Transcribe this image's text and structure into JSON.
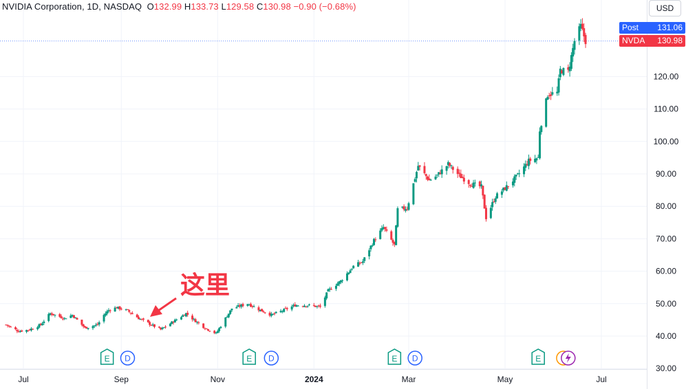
{
  "legend": {
    "symbol": "NVIDIA Corporation, 1D, NASDAQ",
    "o_label": "O",
    "o_value": "132.99",
    "h_label": "H",
    "h_value": "133.73",
    "l_label": "L",
    "l_value": "129.58",
    "c_label": "C",
    "c_value": "130.98",
    "change": "−0.90 (−0.68%)"
  },
  "currency": "USD",
  "tags": {
    "post_label": "Post",
    "post_value": "131.06",
    "nvda_label": "NVDA",
    "nvda_value": "130.98"
  },
  "annotation": "这里",
  "colors": {
    "up": "#089981",
    "down": "#f23645",
    "post": "#2962ff",
    "grid": "#f0f3fa"
  },
  "events": [
    {
      "type": "E",
      "time": "2023-08-23"
    },
    {
      "type": "D",
      "time": "2023-09-05"
    },
    {
      "type": "E",
      "time": "2023-11-21"
    },
    {
      "type": "D",
      "time": "2023-12-05"
    },
    {
      "type": "E",
      "time": "2024-02-21"
    },
    {
      "type": "D",
      "time": "2024-03-05"
    },
    {
      "type": "E",
      "time": "2024-05-22"
    },
    {
      "type": "S",
      "time": "2024-06-07"
    },
    {
      "type": "Z",
      "time": "2024-06-10"
    }
  ],
  "chart_data": {
    "type": "candlestick",
    "title": "NVIDIA Corporation, 1D, NASDAQ",
    "ylim": [
      30,
      136
    ],
    "y_ticks": [
      "120.00",
      "110.00",
      "100.00",
      "90.00",
      "80.00",
      "70.00",
      "60.00",
      "50.00",
      "40.00",
      "30.00"
    ],
    "x_ticks": [
      "Jul",
      "Sep",
      "Nov",
      "2024",
      "Mar",
      "May",
      "Jul"
    ],
    "anchors": [
      [
        "2023-06-20",
        43.5
      ],
      [
        "2023-06-28",
        41.5
      ],
      [
        "2023-07-05",
        42.0
      ],
      [
        "2023-07-12",
        43.5
      ],
      [
        "2023-07-18",
        47.0
      ],
      [
        "2023-07-27",
        45.5
      ],
      [
        "2023-08-01",
        46.5
      ],
      [
        "2023-08-09",
        42.5
      ],
      [
        "2023-08-17",
        43.5
      ],
      [
        "2023-08-21",
        46.5
      ],
      [
        "2023-08-24",
        48.0
      ],
      [
        "2023-08-29",
        48.8
      ],
      [
        "2023-09-05",
        47.8
      ],
      [
        "2023-09-12",
        45.5
      ],
      [
        "2023-09-20",
        43.5
      ],
      [
        "2023-09-26",
        42.0
      ],
      [
        "2023-10-04",
        44.5
      ],
      [
        "2023-10-12",
        47.0
      ],
      [
        "2023-10-17",
        45.0
      ],
      [
        "2023-10-24",
        42.5
      ],
      [
        "2023-10-31",
        40.8
      ],
      [
        "2023-11-06",
        45.5
      ],
      [
        "2023-11-10",
        48.5
      ],
      [
        "2023-11-20",
        50.0
      ],
      [
        "2023-11-28",
        48.0
      ],
      [
        "2023-12-05",
        46.5
      ],
      [
        "2023-12-13",
        48.0
      ],
      [
        "2023-12-20",
        49.5
      ],
      [
        "2023-12-28",
        49.5
      ],
      [
        "2024-01-05",
        49.0
      ],
      [
        "2024-01-10",
        54.0
      ],
      [
        "2024-01-18",
        57.0
      ],
      [
        "2024-01-26",
        61.5
      ],
      [
        "2024-02-01",
        63.0
      ],
      [
        "2024-02-08",
        69.5
      ],
      [
        "2024-02-14",
        73.5
      ],
      [
        "2024-02-21",
        68.0
      ],
      [
        "2024-02-23",
        79.0
      ],
      [
        "2024-02-29",
        79.5
      ],
      [
        "2024-03-07",
        92.5
      ],
      [
        "2024-03-14",
        88.0
      ],
      [
        "2024-03-19",
        89.5
      ],
      [
        "2024-03-26",
        93.0
      ],
      [
        "2024-04-02",
        89.5
      ],
      [
        "2024-04-09",
        87.0
      ],
      [
        "2024-04-16",
        86.0
      ],
      [
        "2024-04-19",
        76.5
      ],
      [
        "2024-04-25",
        83.0
      ],
      [
        "2024-05-02",
        86.0
      ],
      [
        "2024-05-09",
        89.5
      ],
      [
        "2024-05-16",
        94.0
      ],
      [
        "2024-05-22",
        95.0
      ],
      [
        "2024-05-23",
        103.5
      ],
      [
        "2024-05-28",
        114.5
      ],
      [
        "2024-06-03",
        115.0
      ],
      [
        "2024-06-05",
        122.0
      ],
      [
        "2024-06-10",
        121.5
      ],
      [
        "2024-06-14",
        131.0
      ],
      [
        "2024-06-18",
        135.5
      ],
      [
        "2024-06-21",
        131.0
      ]
    ]
  }
}
